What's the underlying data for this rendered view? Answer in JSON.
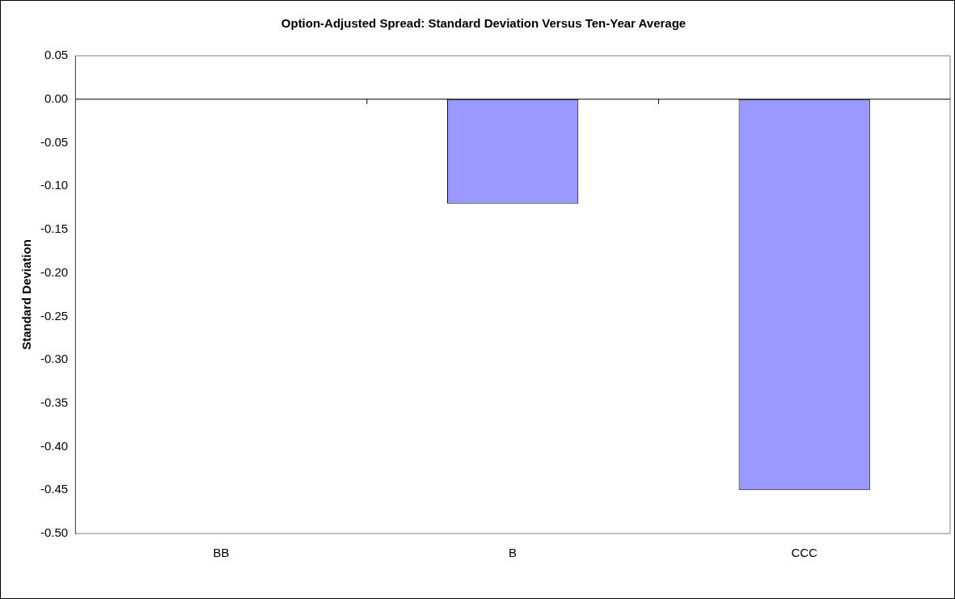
{
  "chart_data": {
    "type": "bar",
    "title": "Option-Adjusted Spread: Standard Deviation Versus Ten-Year Average",
    "ylabel": "Standard Deviation",
    "categories": [
      "BB",
      "B",
      "CCC"
    ],
    "values": [
      0,
      -0.12,
      -0.45
    ],
    "color": "#9999ff",
    "ylim": [
      -0.5,
      0.05
    ],
    "yticks": [
      {
        "value": 0.05,
        "label": "0.05"
      },
      {
        "value": 0,
        "label": "0.00"
      },
      {
        "value": -0.05,
        "label": "-0.05"
      },
      {
        "value": -0.1,
        "label": "-0.10"
      },
      {
        "value": -0.15,
        "label": "-0.15"
      },
      {
        "value": -0.2,
        "label": "-0.20"
      },
      {
        "value": -0.25,
        "label": "-0.25"
      },
      {
        "value": -0.3,
        "label": "-0.30"
      },
      {
        "value": -0.35,
        "label": "-0.35"
      },
      {
        "value": -0.4,
        "label": "-0.40"
      },
      {
        "value": -0.45,
        "label": "-0.45"
      },
      {
        "value": -0.5,
        "label": "-0.50"
      }
    ],
    "legend": false
  }
}
